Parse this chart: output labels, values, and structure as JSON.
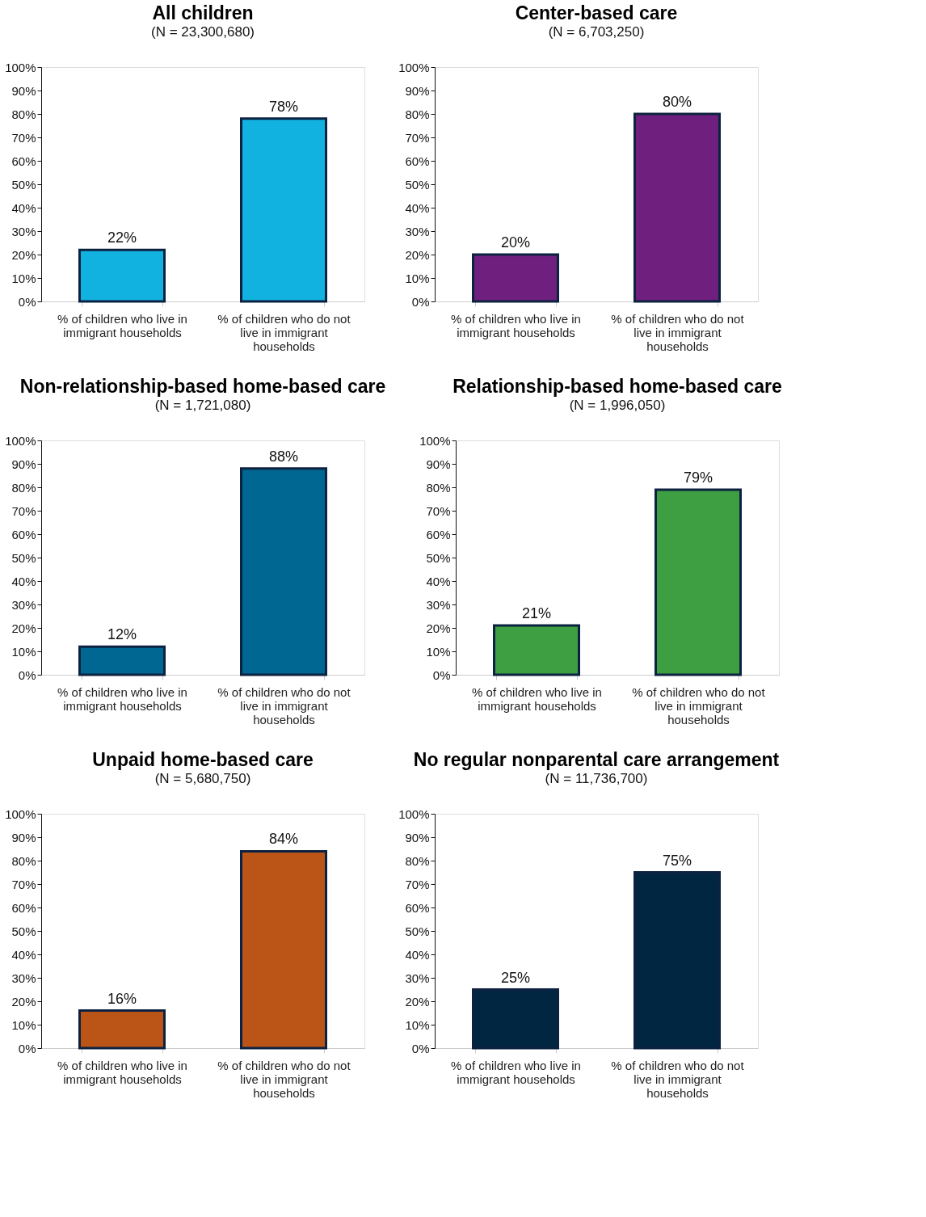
{
  "chart_data": [
    {
      "type": "bar",
      "title": "All children",
      "subtitle": "(N = 23,300,680)",
      "categories": [
        "% of children who live in immigrant households",
        "% of children who do not live in immigrant households"
      ],
      "values": [
        22,
        78
      ],
      "value_labels": [
        "22%",
        "78%"
      ],
      "color": "#12b2e0",
      "ylim": [
        0,
        100
      ],
      "yticks": [
        {
          "value": 0,
          "label": "0%"
        },
        {
          "value": 10,
          "label": "10%"
        },
        {
          "value": 20,
          "label": "20%"
        },
        {
          "value": 30,
          "label": "30%"
        },
        {
          "value": 40,
          "label": "40%"
        },
        {
          "value": 50,
          "label": "50%"
        },
        {
          "value": 60,
          "label": "60%"
        },
        {
          "value": 70,
          "label": "70%"
        },
        {
          "value": 80,
          "label": "80%"
        },
        {
          "value": 90,
          "label": "90%"
        },
        {
          "value": 100,
          "label": "100%"
        }
      ],
      "grid": false
    },
    {
      "type": "bar",
      "title": "Center-based care",
      "subtitle": "(N = 6,703,250)",
      "categories": [
        "% of children who live in immigrant households",
        "% of children who do not live in immigrant households"
      ],
      "values": [
        20,
        80
      ],
      "value_labels": [
        "20%",
        "80%"
      ],
      "color": "#6f1f7d",
      "ylim": [
        0,
        100
      ],
      "yticks": [
        {
          "value": 0,
          "label": "0%"
        },
        {
          "value": 10,
          "label": "10%"
        },
        {
          "value": 20,
          "label": "20%"
        },
        {
          "value": 30,
          "label": "30%"
        },
        {
          "value": 40,
          "label": "40%"
        },
        {
          "value": 50,
          "label": "50%"
        },
        {
          "value": 60,
          "label": "60%"
        },
        {
          "value": 70,
          "label": "70%"
        },
        {
          "value": 80,
          "label": "80%"
        },
        {
          "value": 90,
          "label": "90%"
        },
        {
          "value": 100,
          "label": "100%"
        }
      ],
      "grid": false
    },
    {
      "type": "bar",
      "title": "Non-relationship-based home-based care",
      "subtitle": "(N = 1,721,080)",
      "categories": [
        "% of children who live in immigrant households",
        "% of children who do not live in immigrant households"
      ],
      "values": [
        12,
        88
      ],
      "value_labels": [
        "12%",
        "88%"
      ],
      "color": "#006692",
      "ylim": [
        0,
        100
      ],
      "yticks": [
        {
          "value": 0,
          "label": "0%"
        },
        {
          "value": 10,
          "label": "10%"
        },
        {
          "value": 20,
          "label": "20%"
        },
        {
          "value": 30,
          "label": "30%"
        },
        {
          "value": 40,
          "label": "40%"
        },
        {
          "value": 50,
          "label": "50%"
        },
        {
          "value": 60,
          "label": "60%"
        },
        {
          "value": 70,
          "label": "70%"
        },
        {
          "value": 80,
          "label": "80%"
        },
        {
          "value": 90,
          "label": "90%"
        },
        {
          "value": 100,
          "label": "100%"
        }
      ],
      "grid": false
    },
    {
      "type": "bar",
      "title": "Relationship-based home-based care",
      "subtitle": "(N = 1,996,050)",
      "categories": [
        "% of children who live in immigrant households",
        "% of children who do not live in immigrant households"
      ],
      "values": [
        21,
        79
      ],
      "value_labels": [
        "21%",
        "79%"
      ],
      "color": "#3e9e42",
      "ylim": [
        0,
        100
      ],
      "yticks": [
        {
          "value": 0,
          "label": "0%"
        },
        {
          "value": 10,
          "label": "10%"
        },
        {
          "value": 20,
          "label": "20%"
        },
        {
          "value": 30,
          "label": "30%"
        },
        {
          "value": 40,
          "label": "40%"
        },
        {
          "value": 50,
          "label": "50%"
        },
        {
          "value": 60,
          "label": "60%"
        },
        {
          "value": 70,
          "label": "70%"
        },
        {
          "value": 80,
          "label": "80%"
        },
        {
          "value": 90,
          "label": "90%"
        },
        {
          "value": 100,
          "label": "100%"
        }
      ],
      "grid": false
    },
    {
      "type": "bar",
      "title": "Unpaid home-based care",
      "subtitle": "(N = 5,680,750)",
      "categories": [
        "% of children who live in immigrant households",
        "% of children who do not live in immigrant households"
      ],
      "values": [
        16,
        84
      ],
      "value_labels": [
        "16%",
        "84%"
      ],
      "color": "#bb5517",
      "ylim": [
        0,
        100
      ],
      "yticks": [
        {
          "value": 0,
          "label": "0%"
        },
        {
          "value": 10,
          "label": "10%"
        },
        {
          "value": 20,
          "label": "20%"
        },
        {
          "value": 30,
          "label": "30%"
        },
        {
          "value": 40,
          "label": "40%"
        },
        {
          "value": 50,
          "label": "50%"
        },
        {
          "value": 60,
          "label": "60%"
        },
        {
          "value": 70,
          "label": "70%"
        },
        {
          "value": 80,
          "label": "80%"
        },
        {
          "value": 90,
          "label": "90%"
        },
        {
          "value": 100,
          "label": "100%"
        }
      ],
      "grid": false
    },
    {
      "type": "bar",
      "title": "No regular nonparental care arrangement",
      "subtitle": "(N = 11,736,700)",
      "categories": [
        "% of children who live in immigrant households",
        "% of children who do not live in immigrant households"
      ],
      "values": [
        25,
        75
      ],
      "value_labels": [
        "25%",
        "75%"
      ],
      "color": "#002642",
      "ylim": [
        0,
        100
      ],
      "yticks": [
        {
          "value": 0,
          "label": "0%"
        },
        {
          "value": 10,
          "label": "10%"
        },
        {
          "value": 20,
          "label": "20%"
        },
        {
          "value": 30,
          "label": "30%"
        },
        {
          "value": 40,
          "label": "40%"
        },
        {
          "value": 50,
          "label": "50%"
        },
        {
          "value": 60,
          "label": "60%"
        },
        {
          "value": 70,
          "label": "70%"
        },
        {
          "value": 80,
          "label": "80%"
        },
        {
          "value": 90,
          "label": "90%"
        },
        {
          "value": 100,
          "label": "100%"
        }
      ],
      "grid": false
    }
  ]
}
